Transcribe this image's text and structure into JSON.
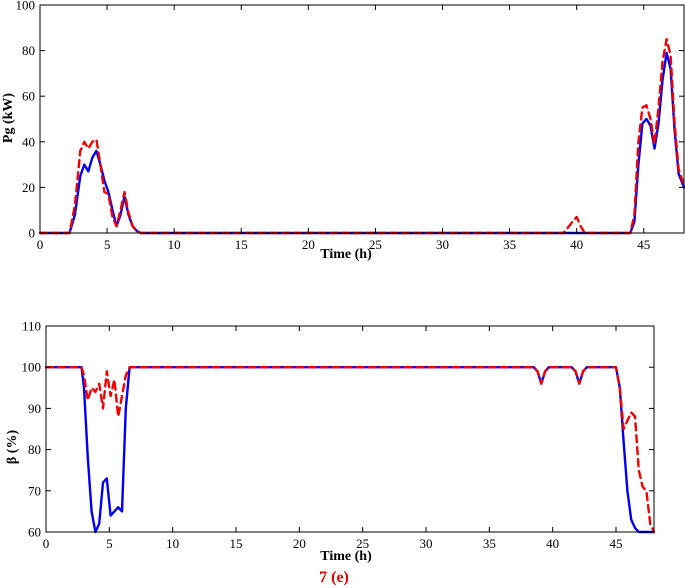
{
  "caption": "7 (e)",
  "colors": {
    "solid_series": "#0000ee",
    "dashed_series": "#ee0000",
    "axis": "#000000",
    "caption": "#e00000"
  },
  "chart_data": [
    {
      "type": "line",
      "xlabel": "Time (h)",
      "ylabel": "Pg (kW)",
      "xlim": [
        0,
        48
      ],
      "ylim": [
        0,
        100
      ],
      "xticks": [
        0,
        5,
        10,
        15,
        20,
        25,
        30,
        35,
        40,
        45
      ],
      "yticks": [
        0,
        20,
        40,
        60,
        80,
        100
      ],
      "grid": false,
      "series": [
        {
          "style": "solid",
          "color": "#0000ee",
          "x": [
            0,
            2.2,
            2.6,
            3,
            3.3,
            3.6,
            3.9,
            4.2,
            4.5,
            4.8,
            5.1,
            5.4,
            5.7,
            6,
            6.3,
            6.6,
            6.9,
            7.2,
            7.5,
            8,
            10,
            20,
            30,
            40,
            44,
            44.3,
            44.6,
            44.9,
            45.2,
            45.5,
            45.8,
            46.1,
            46.4,
            46.7,
            47,
            47.3,
            47.6,
            48
          ],
          "y": [
            0,
            0,
            8,
            25,
            30,
            27,
            33,
            36,
            30,
            23,
            18,
            10,
            3,
            8,
            16,
            8,
            3,
            1,
            0,
            0,
            0,
            0,
            0,
            0,
            0,
            5,
            30,
            48,
            50,
            47,
            37,
            48,
            67,
            79,
            72,
            45,
            26,
            20
          ]
        },
        {
          "style": "dashed",
          "color": "#ee0000",
          "x": [
            0,
            2.2,
            2.6,
            3,
            3.3,
            3.6,
            3.9,
            4.2,
            4.5,
            4.8,
            5.1,
            5.4,
            5.7,
            6,
            6.3,
            6.6,
            6.9,
            7.2,
            7.5,
            8,
            10,
            20,
            30,
            39,
            39.3,
            39.7,
            40,
            40.3,
            40.6,
            41,
            44,
            44.3,
            44.6,
            44.9,
            45.2,
            45.5,
            45.8,
            46.1,
            46.4,
            46.7,
            47,
            47.3,
            47.6,
            48
          ],
          "y": [
            0,
            0,
            12,
            36,
            40,
            37,
            40,
            41,
            30,
            18,
            17,
            7,
            3,
            10,
            18,
            9,
            3,
            1,
            0,
            0,
            0,
            0,
            0,
            0,
            2,
            5,
            7,
            3,
            0,
            0,
            0,
            8,
            40,
            55,
            56,
            50,
            39,
            55,
            75,
            85,
            78,
            48,
            28,
            21
          ]
        }
      ]
    },
    {
      "type": "line",
      "xlabel": "Time (h)",
      "ylabel": "β (%)",
      "xlim": [
        0,
        48
      ],
      "ylim": [
        60,
        110
      ],
      "xticks": [
        0,
        5,
        10,
        15,
        20,
        25,
        30,
        35,
        40,
        45
      ],
      "yticks": [
        60,
        70,
        80,
        90,
        100,
        110
      ],
      "grid": false,
      "series": [
        {
          "style": "solid",
          "color": "#0000ee",
          "x": [
            0,
            2.8,
            3,
            3.3,
            3.6,
            3.9,
            4.2,
            4.5,
            4.8,
            5.1,
            5.4,
            5.7,
            6,
            6.3,
            6.6,
            7,
            10,
            20,
            30,
            38.5,
            38.8,
            39.1,
            39.4,
            39.7,
            40,
            41.5,
            41.8,
            42.1,
            42.4,
            42.7,
            45,
            45.3,
            45.6,
            45.9,
            46.2,
            46.5,
            46.8,
            47.1,
            48
          ],
          "y": [
            100,
            100,
            95,
            78,
            65,
            60,
            62,
            72,
            73,
            64,
            65,
            66,
            65,
            90,
            100,
            100,
            100,
            100,
            100,
            100,
            99,
            96,
            99,
            100,
            100,
            100,
            99,
            96,
            99,
            100,
            100,
            95,
            82,
            70,
            63,
            61,
            60,
            60,
            60
          ]
        },
        {
          "style": "dashed",
          "color": "#ee0000",
          "x": [
            0,
            2.8,
            3,
            3.3,
            3.6,
            3.9,
            4.2,
            4.5,
            4.8,
            5.1,
            5.4,
            5.7,
            6,
            6.3,
            6.6,
            7,
            10,
            20,
            30,
            38.5,
            38.8,
            39.1,
            39.4,
            39.7,
            40,
            41.5,
            41.8,
            42.1,
            42.4,
            42.7,
            45,
            45.3,
            45.6,
            45.9,
            46.2,
            46.5,
            46.8,
            47.1,
            47.4,
            47.7,
            48
          ],
          "y": [
            100,
            100,
            98,
            92,
            95,
            94,
            96,
            90,
            99,
            93,
            97,
            88,
            93,
            98,
            100,
            100,
            100,
            100,
            100,
            100,
            99,
            96,
            99,
            100,
            100,
            100,
            99,
            96,
            99,
            100,
            100,
            95,
            85,
            87,
            89,
            88,
            75,
            71,
            70,
            62,
            60
          ]
        }
      ]
    }
  ]
}
